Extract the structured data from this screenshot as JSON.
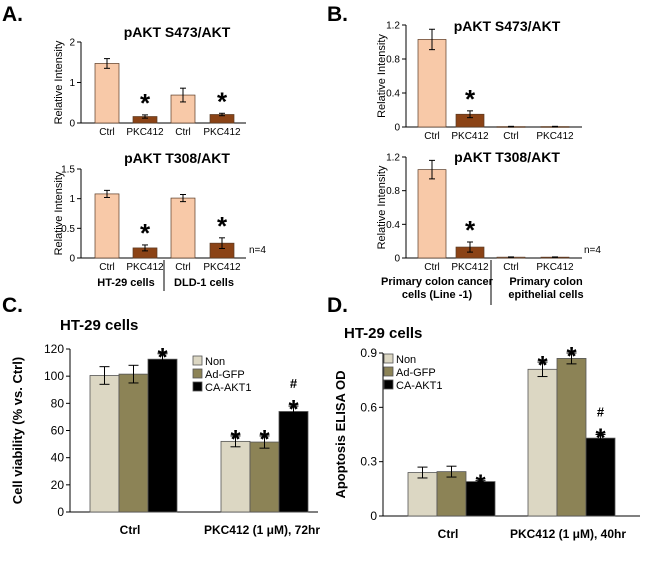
{
  "panels": {
    "A": "A.",
    "B": "B.",
    "C": "C.",
    "D": "D."
  },
  "colors": {
    "ctrl": "#f8c9a8",
    "pkc": "#8b4316",
    "non": "#dcd7c3",
    "gfp": "#8c8356",
    "akt": "#000000"
  },
  "chart_data": [
    {
      "id": "A1",
      "type": "bar",
      "title": "pAKT S473/AKT",
      "ylabel": "Relative Intensity",
      "ylim": [
        0,
        2
      ],
      "yticks": [
        "0",
        "1",
        "2"
      ],
      "categories": [
        "Ctrl",
        "PKC412",
        "Ctrl",
        "PKC412"
      ],
      "values": [
        1.47,
        0.16,
        0.69,
        0.21
      ],
      "errors": [
        0.12,
        0.04,
        0.17,
        0.03
      ],
      "star_label": "*",
      "stars": [
        false,
        true,
        false,
        true
      ]
    },
    {
      "id": "A2",
      "type": "bar",
      "title": "pAKT T308/AKT",
      "ylabel": "Relative Intensity",
      "ylim": [
        0,
        1.5
      ],
      "yticks": [
        "0",
        "0.5",
        "1",
        "1.5"
      ],
      "categories": [
        "Ctrl",
        "PKC412",
        "Ctrl",
        "PKC412"
      ],
      "values": [
        1.08,
        0.17,
        1.01,
        0.25
      ],
      "errors": [
        0.06,
        0.05,
        0.06,
        0.09
      ],
      "star_label": "*",
      "stars": [
        false,
        true,
        false,
        true
      ],
      "groups": [
        "HT-29 cells",
        "DLD-1 cells"
      ],
      "note": "n=4"
    },
    {
      "id": "B1",
      "type": "bar",
      "title": "pAKT S473/AKT",
      "ylabel": "Relative Intensity",
      "ylim": [
        0,
        1.2
      ],
      "yticks": [
        "0",
        "0.4",
        "0.8",
        "1.2"
      ],
      "categories": [
        "Ctrl",
        "PKC412",
        "Ctrl",
        "PKC412"
      ],
      "values": [
        1.03,
        0.15,
        0.005,
        0.005
      ],
      "errors": [
        0.12,
        0.04,
        0.003,
        0.003
      ],
      "star_label": "*",
      "stars": [
        false,
        true,
        false,
        false
      ]
    },
    {
      "id": "B2",
      "type": "bar",
      "title": "pAKT T308/AKT",
      "ylabel": "Relative Intensity",
      "ylim": [
        0,
        1.2
      ],
      "yticks": [
        "0",
        "0.4",
        "0.8",
        "1.2"
      ],
      "categories": [
        "Ctrl",
        "PKC412",
        "Ctrl",
        "PKC412"
      ],
      "values": [
        1.05,
        0.13,
        0.01,
        0.01
      ],
      "errors": [
        0.11,
        0.06,
        0.003,
        0.003
      ],
      "star_label": "*",
      "stars": [
        false,
        true,
        false,
        false
      ],
      "groups": [
        "Primary colon cancer cells (Line -1)",
        "Primary colon epithelial cells"
      ],
      "note": "n=4"
    },
    {
      "id": "C",
      "type": "bar",
      "title": "HT-29 cells",
      "ylabel": "Cell viability (% vs. Ctrl)",
      "ylim": [
        0,
        120
      ],
      "yticks": [
        "0",
        "20",
        "40",
        "60",
        "80",
        "100",
        "120"
      ],
      "categories": [
        "Ctrl",
        "PKC412 (1 μM), 72hr"
      ],
      "legend": [
        "Non",
        "Ad-GFP",
        "CA-AKT1"
      ],
      "series": [
        {
          "name": "Non",
          "values": [
            100.5,
            52
          ],
          "errors": [
            6.5,
            4
          ]
        },
        {
          "name": "Ad-GFP",
          "values": [
            101.5,
            51.5
          ],
          "errors": [
            6.5,
            4.5
          ]
        },
        {
          "name": "CA-AKT1",
          "values": [
            112.5,
            74
          ],
          "errors": [
            4,
            4
          ]
        }
      ],
      "star_label": "*",
      "hash_label": "#",
      "stars": [
        [
          false,
          false,
          true
        ],
        [
          true,
          true,
          true
        ]
      ],
      "hashes": [
        [
          false,
          false,
          false
        ],
        [
          false,
          false,
          true
        ]
      ]
    },
    {
      "id": "D",
      "type": "bar",
      "title": "HT-29 cells",
      "ylabel": "Apoptosis ELISA OD",
      "ylim": [
        0,
        0.9
      ],
      "yticks": [
        "0",
        "0.3",
        "0.6",
        "0.9"
      ],
      "categories": [
        "Ctrl",
        "PKC412 (1 μM), 40hr"
      ],
      "legend": [
        "Non",
        "Ad-GFP",
        "CA-AKT1"
      ],
      "series": [
        {
          "name": "Non",
          "values": [
            0.24,
            0.81
          ],
          "errors": [
            0.03,
            0.04
          ]
        },
        {
          "name": "Ad-GFP",
          "values": [
            0.245,
            0.87
          ],
          "errors": [
            0.03,
            0.03
          ]
        },
        {
          "name": "CA-AKT1",
          "values": [
            0.19,
            0.43
          ],
          "errors": [
            0.005,
            0.02
          ]
        }
      ],
      "star_label": "*",
      "hash_label": "#",
      "stars": [
        [
          false,
          false,
          true
        ],
        [
          true,
          true,
          true
        ]
      ],
      "hashes": [
        [
          false,
          false,
          false
        ],
        [
          false,
          false,
          true
        ]
      ]
    }
  ]
}
